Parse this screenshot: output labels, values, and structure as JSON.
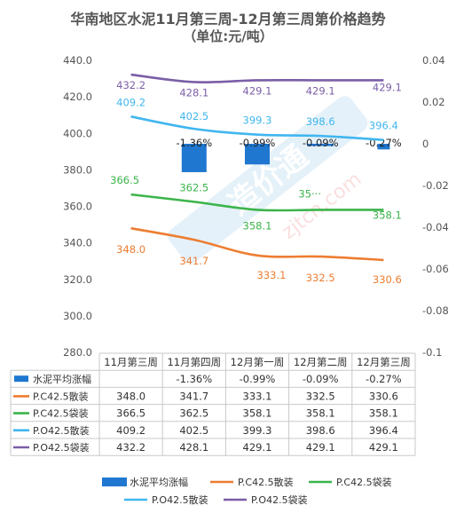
{
  "chart_data": {
    "type": "bar+line",
    "title": "华南地区水泥11月第三周-12月第三周第价格趋势",
    "subtitle": "（单位:元/吨）",
    "categories": [
      "11月第三周",
      "11月第四周",
      "12月第一周",
      "12月第二周",
      "12月第三周"
    ],
    "y_left": {
      "min": 280,
      "max": 440,
      "ticks": [
        "440.0",
        "420.0",
        "400.0",
        "380.0",
        "360.0",
        "340.0",
        "320.0",
        "300.0",
        "280.0"
      ]
    },
    "y_right": {
      "min": -0.1,
      "max": 0.04,
      "ticks": [
        "0.04",
        "0.02",
        "0",
        "-0.02",
        "-0.04",
        "-0.06",
        "-0.08",
        "-0.1"
      ]
    },
    "bar_series": {
      "name": "水泥平均涨幅",
      "color": "#1f77d0",
      "values": [
        null,
        -1.36,
        -0.99,
        -0.09,
        -0.27
      ],
      "labels": [
        "",
        "-1.36%",
        "-0.99%",
        "-0.09%",
        "-0.27%"
      ]
    },
    "series": [
      {
        "name": "P.C42.5散装",
        "color": "#ed7d31",
        "values": [
          348.0,
          341.7,
          333.1,
          332.5,
          330.6
        ],
        "labels": [
          "348.0",
          "341.7",
          "333.1",
          "332.5",
          "330.6"
        ]
      },
      {
        "name": "P.C42.5袋装",
        "color": "#3cb44b",
        "values": [
          366.5,
          362.5,
          358.1,
          358.1,
          358.1
        ],
        "labels": [
          "366.5",
          "362.5",
          "358.1",
          "35···",
          "358.1"
        ]
      },
      {
        "name": "P.O42.5散装",
        "color": "#41b6ef",
        "values": [
          409.2,
          402.5,
          399.3,
          398.6,
          396.4
        ],
        "labels": [
          "409.2",
          "402.5",
          "399.3",
          "398.6",
          "396.4"
        ]
      },
      {
        "name": "P.O42.5袋装",
        "color": "#7b5ea7",
        "values": [
          432.2,
          428.1,
          429.1,
          429.1,
          429.1
        ],
        "labels": [
          "432.2",
          "428.1",
          "429.1",
          "429.1",
          "429.1"
        ]
      }
    ],
    "table": [
      [
        "",
        "-1.36%",
        "-0.99%",
        "-0.09%",
        "-0.27%"
      ],
      [
        "348.0",
        "341.7",
        "333.1",
        "332.5",
        "330.6"
      ],
      [
        "366.5",
        "362.5",
        "358.1",
        "358.1",
        "358.1"
      ],
      [
        "409.2",
        "402.5",
        "399.3",
        "398.6",
        "396.4"
      ],
      [
        "432.2",
        "428.1",
        "429.1",
        "429.1",
        "429.1"
      ]
    ],
    "legend_position": "bottom",
    "grid": false,
    "watermark": "zjtcn.com"
  }
}
